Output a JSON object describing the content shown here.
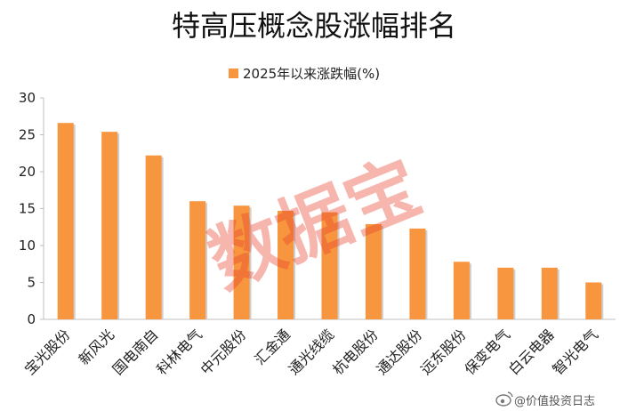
{
  "chart_data": {
    "type": "bar",
    "title": "特高压概念股涨幅排名",
    "legend": [
      "2025年以来涨跌幅(%)"
    ],
    "legend_position": "top",
    "xlabel": "",
    "ylabel": "",
    "ylim": [
      0,
      30
    ],
    "yticks": [
      0,
      5,
      10,
      15,
      20,
      25,
      30
    ],
    "grid": false,
    "categories": [
      "宝光股份",
      "新风光",
      "国电南自",
      "科林电气",
      "中元股份",
      "汇金通",
      "通光线缆",
      "杭电股份",
      "通达股份",
      "远东股份",
      "保变电气",
      "白云电器",
      "智光电气"
    ],
    "series": [
      {
        "name": "2025年以来涨跌幅(%)",
        "values": [
          26.6,
          25.4,
          22.2,
          16.0,
          15.4,
          14.7,
          14.5,
          12.9,
          12.3,
          7.8,
          7.0,
          7.0,
          5.0
        ]
      }
    ],
    "colors": {
      "bar": "#f7963e",
      "bar_shadow": "#cfcfcf",
      "axis": "#bfbfbf",
      "text": "#222222"
    }
  },
  "watermark": "数据宝",
  "credit": "@价值投资日志",
  "icons": {
    "credit_icon": "weibo-icon"
  }
}
